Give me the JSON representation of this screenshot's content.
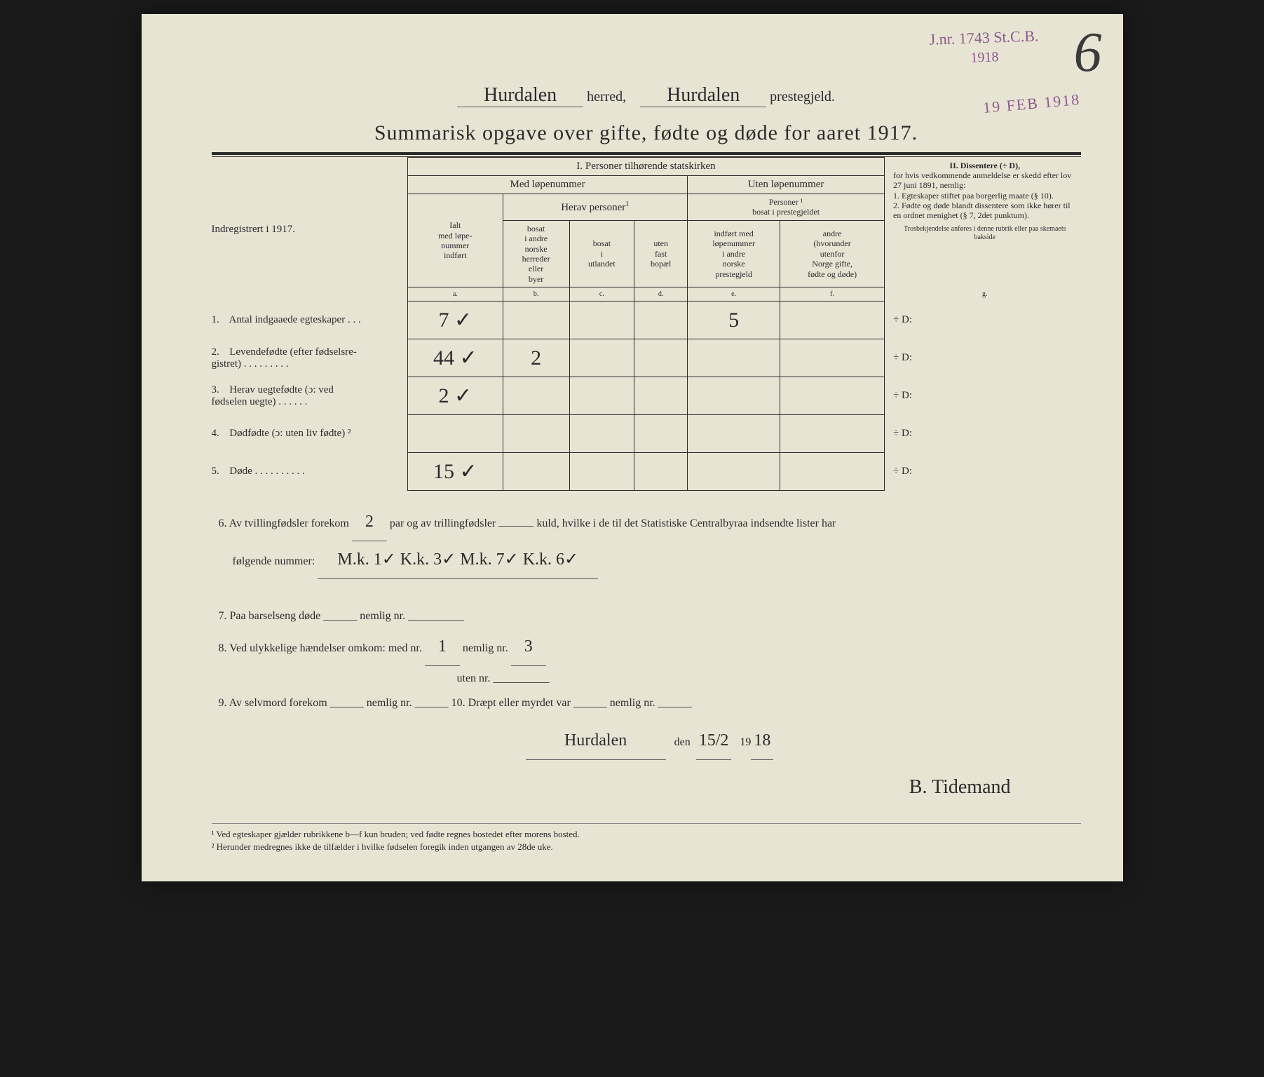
{
  "stamp_top": {
    "line1": "J.nr. 1743 St.C.B.",
    "line2": "1918"
  },
  "stamp_date": "19 FEB 1918",
  "page_number": "6",
  "header": {
    "herred_value": "Hurdalen",
    "herred_label": "herred,",
    "prestegjeld_value": "Hurdalen",
    "prestegjeld_label": "prestegjeld."
  },
  "title": "Summarisk opgave over gifte, fødte og døde for aaret 1917.",
  "table": {
    "left_header": "Indregistrert i 1917.",
    "section1": "I.  Personer tilhørende statskirken",
    "med_lop": "Med løpenummer",
    "uten_lop": "Uten løpenummer",
    "herav": "Herav personer",
    "pers_bosat": "Personer ¹\nbosat i prestegjeldet",
    "col_a_top": "Ialt\nmed løpe-\nnummer\nindført",
    "col_b": "bosat\ni andre\nnorske\nherreder\neller\nbyer",
    "col_c": "bosat\ni\nutlandet",
    "col_d": "uten\nfast\nbopæl",
    "col_e": "indført med\nløpenummer\ni andre\nnorske\nprestegjeld",
    "col_f": "andre\n(hvorunder\nutenfor\nNorge gifte,\nfødte og døde)",
    "letters": [
      "a.",
      "b.",
      "c.",
      "d.",
      "e.",
      "f.",
      "g."
    ],
    "section2_title": "II.  Dissentere (÷ D),",
    "section2_body": "for hvis vedkommende anmeldelse er skedd efter lov 27 juni 1891, nemlig:\n1. Egteskaper stiftet paa borgerlig maate (§ 10).\n2. Fødte og døde blandt dissentere som ikke hører til en ordnet menighet (§ 7, 2det punktum).",
    "section2_small": "Trosbekjendelse anføres i denne rubrik eller paa skemaets bakside",
    "rows": [
      {
        "n": "1.",
        "label": "Antal indgaaede egteskaper . . .",
        "a": "7 ✓",
        "b": "",
        "c": "",
        "d": "",
        "e": "5",
        "f": "",
        "g": "÷ D:"
      },
      {
        "n": "2.",
        "label": "Levendefødte (efter fødselsre-\ngistret) . . . . . . . . .",
        "a": "44 ✓",
        "b": "2",
        "c": "",
        "d": "",
        "e": "",
        "f": "",
        "g": "÷ D:"
      },
      {
        "n": "3.",
        "label": "Herav uegtefødte (ɔ: ved\nfødselen uegte) . . . . . .",
        "a": "2 ✓",
        "b": "",
        "c": "",
        "d": "",
        "e": "",
        "f": "",
        "g": "÷ D:"
      },
      {
        "n": "4.",
        "label": "Dødfødte (ɔ: uten liv fødte) ²",
        "a": "",
        "b": "",
        "c": "",
        "d": "",
        "e": "",
        "f": "",
        "g": "÷ D:"
      },
      {
        "n": "5.",
        "label": "Døde . . . . . . . . . .",
        "a": "15 ✓",
        "b": "",
        "c": "",
        "d": "",
        "e": "",
        "f": "",
        "g": "÷ D:"
      }
    ]
  },
  "q6": {
    "prefix": "6.   Av tvillingfødsler forekom",
    "twins": "2",
    "mid": "par og av trillingfødsler",
    "triplets": "",
    "suffix": "kuld, hvilke i de til det Statistiske Centralbyraa indsendte lister har",
    "line2_label": "følgende nummer:",
    "line2_value": "M.k. 1✓  K.k. 3✓  M.k. 7✓  K.k. 6✓"
  },
  "q7": "7.   Paa barselseng døde ______ nemlig nr. __________",
  "q8": {
    "prefix": "8.   Ved ulykkelige hændelser omkom:  med nr.",
    "med": "1",
    "mid": "nemlig nr.",
    "nemlig": "3",
    "line2": "uten nr. __________"
  },
  "q9_10": "9.   Av selvmord forekom ______ nemlig nr. ______            10.   Dræpt eller myrdet var ______ nemlig nr. ______",
  "dateline": {
    "place": "Hurdalen",
    "den": "den",
    "date": "15/2",
    "year_prefix": "19",
    "year": "18"
  },
  "signature": "B. Tidemand",
  "footnotes": {
    "f1": "¹ Ved egteskaper gjælder rubrikkene b—f kun bruden; ved fødte regnes bostedet efter morens bosted.",
    "f2": "² Herunder medregnes ikke de tilfælder i hvilke fødselen foregik inden utgangen av 28de uke."
  }
}
